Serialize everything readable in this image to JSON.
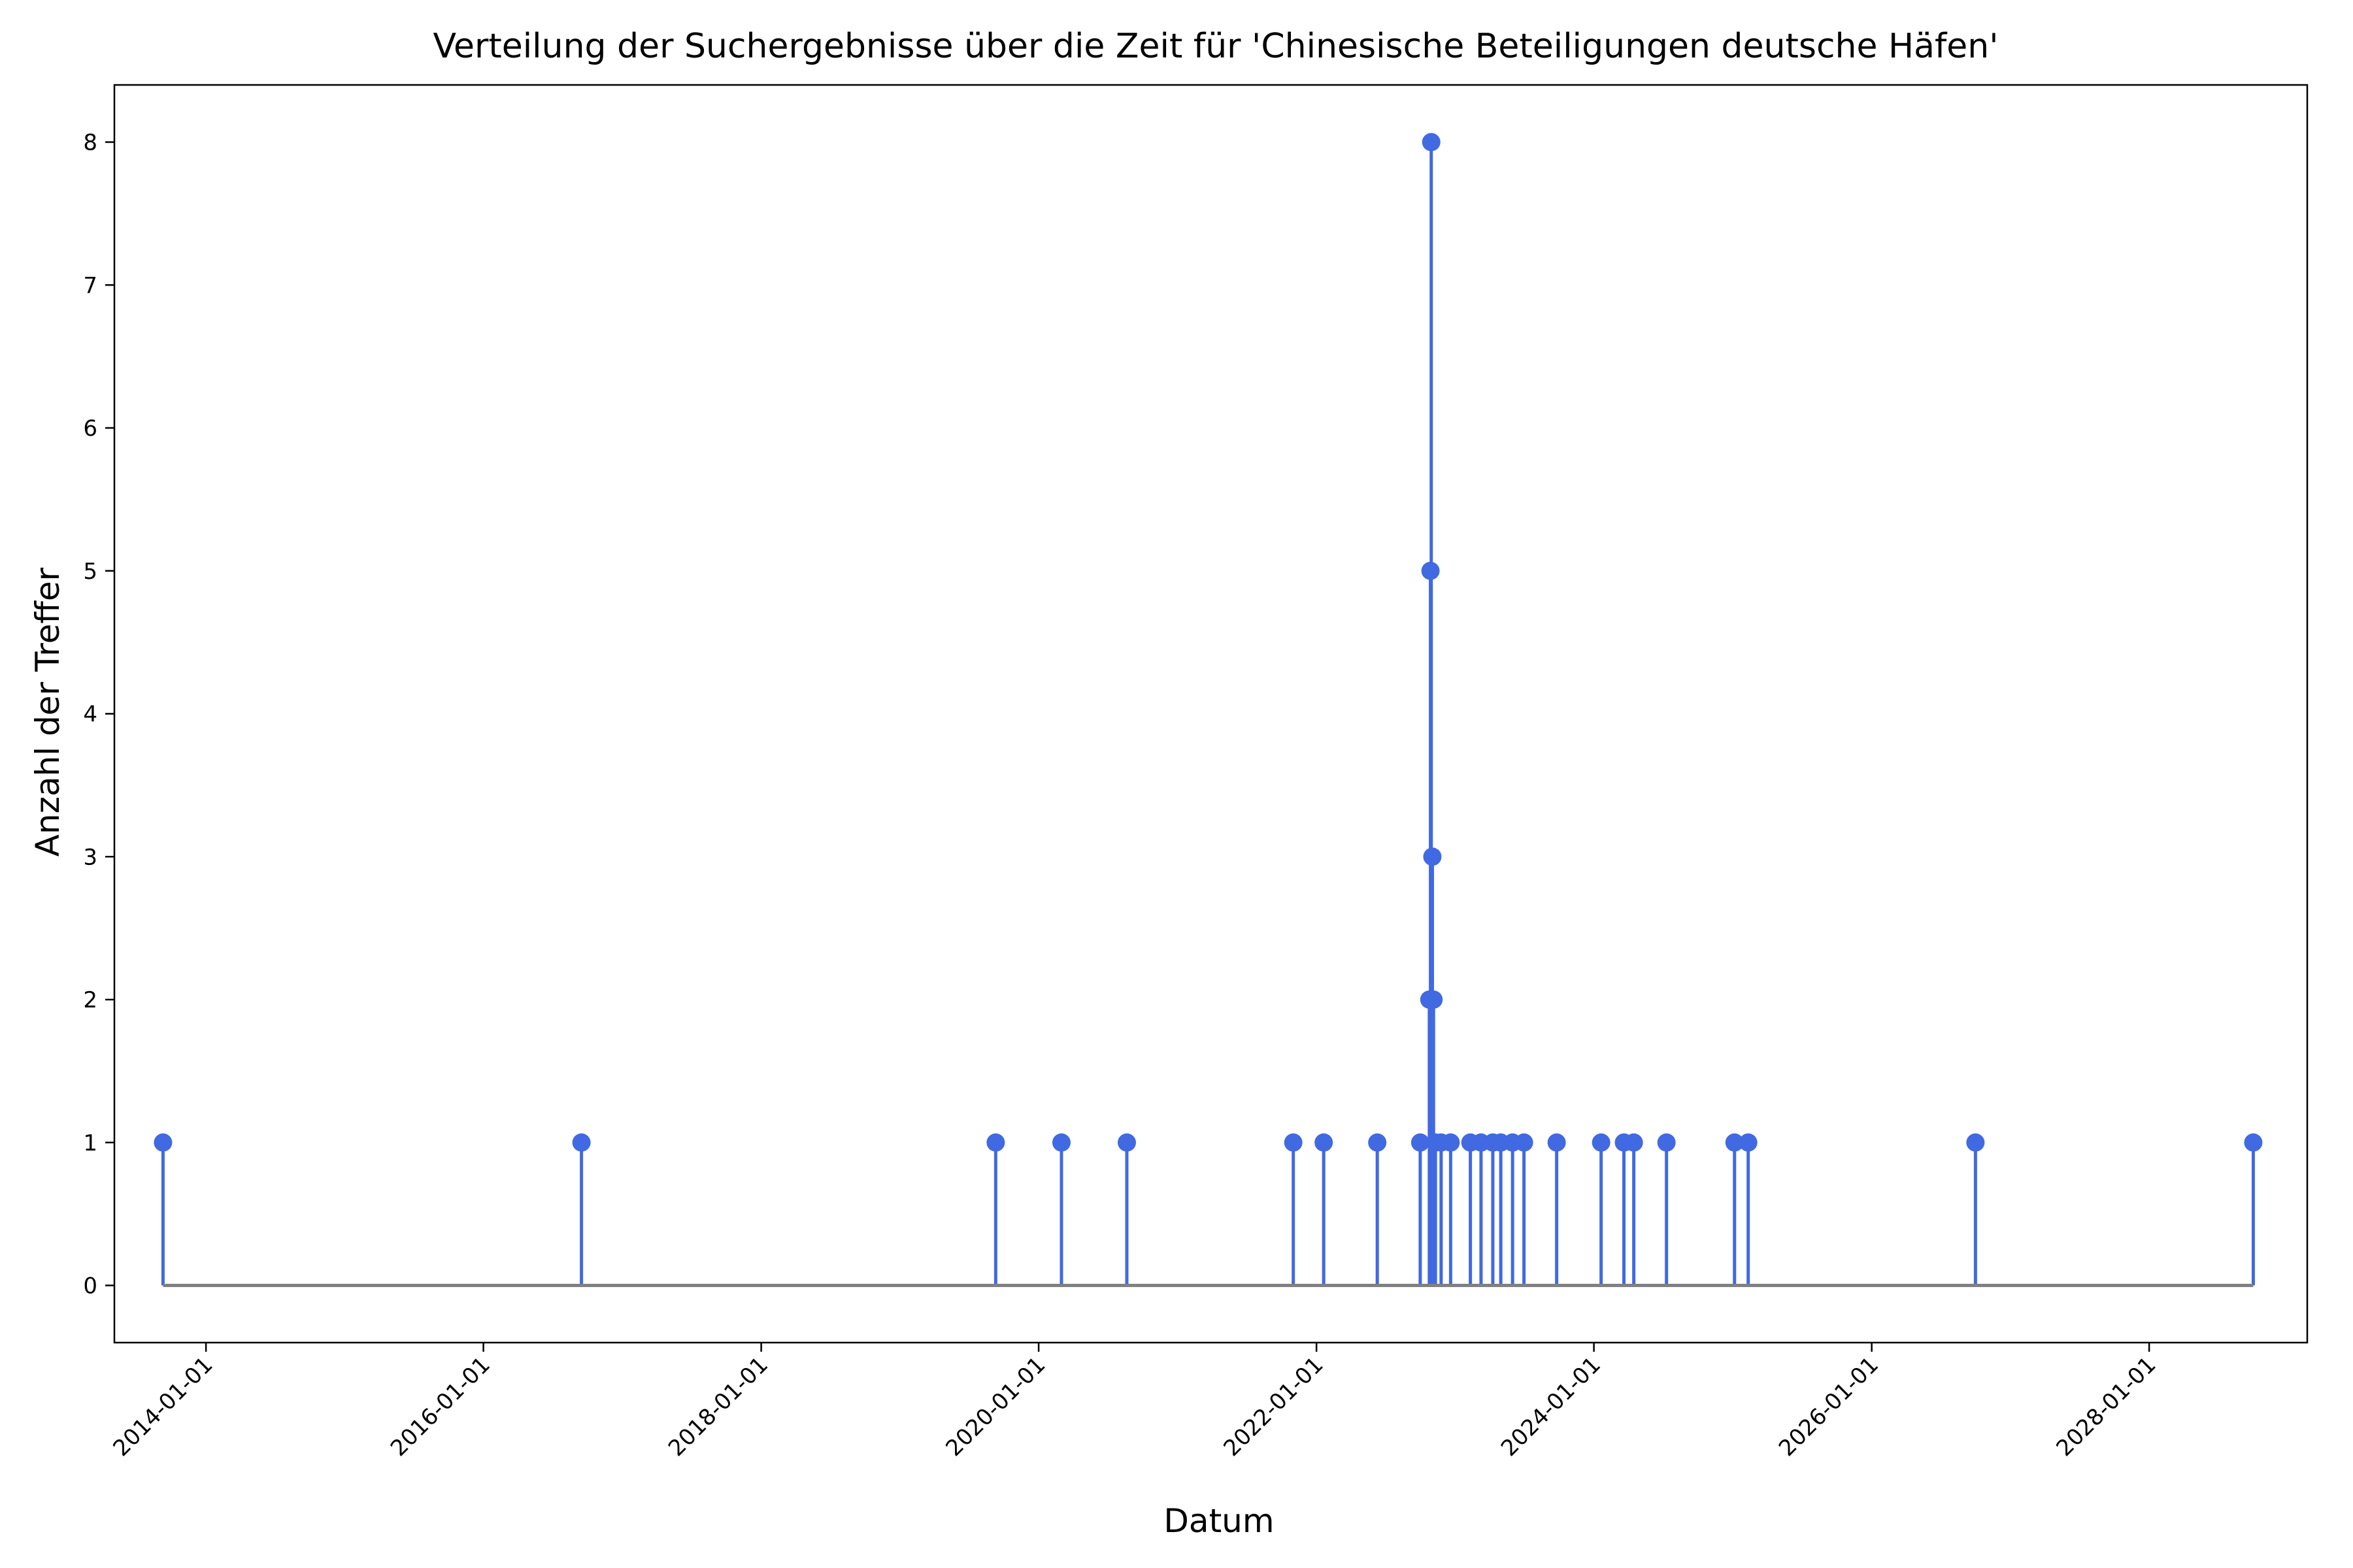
{
  "chart_data": {
    "type": "stem",
    "title": "Verteilung der Suchergebnisse über die Zeit für 'Chinesische Beteiligungen deutsche Häfen'",
    "xlabel": "Datum",
    "ylabel": "Anzahl der Treffer",
    "xlim": [
      "2013-05-05",
      "2029-02-20"
    ],
    "ylim": [
      -0.4,
      8.4
    ],
    "x_ticks": [
      "2014-01-01",
      "2016-01-01",
      "2018-01-01",
      "2020-01-01",
      "2022-01-01",
      "2024-01-01",
      "2026-01-01",
      "2028-01-01"
    ],
    "y_ticks": [
      0,
      1,
      2,
      3,
      4,
      5,
      6,
      7,
      8
    ],
    "grid": false,
    "colors": {
      "stem": "#4169e1",
      "baseline": "#808080"
    },
    "points": [
      {
        "x": "2013-09-10",
        "y": 1
      },
      {
        "x": "2016-09-15",
        "y": 1
      },
      {
        "x": "2019-09-10",
        "y": 1
      },
      {
        "x": "2020-03-01",
        "y": 1
      },
      {
        "x": "2020-08-20",
        "y": 1
      },
      {
        "x": "2021-11-01",
        "y": 1
      },
      {
        "x": "2022-01-20",
        "y": 1
      },
      {
        "x": "2022-06-10",
        "y": 1
      },
      {
        "x": "2022-10-01",
        "y": 1
      },
      {
        "x": "2022-10-25",
        "y": 2
      },
      {
        "x": "2022-10-28",
        "y": 5
      },
      {
        "x": "2022-10-30",
        "y": 8
      },
      {
        "x": "2022-11-02",
        "y": 3
      },
      {
        "x": "2022-11-05",
        "y": 2
      },
      {
        "x": "2022-11-10",
        "y": 1
      },
      {
        "x": "2022-11-25",
        "y": 1
      },
      {
        "x": "2022-12-20",
        "y": 1
      },
      {
        "x": "2023-02-10",
        "y": 1
      },
      {
        "x": "2023-03-10",
        "y": 1
      },
      {
        "x": "2023-04-10",
        "y": 1
      },
      {
        "x": "2023-05-01",
        "y": 1
      },
      {
        "x": "2023-06-01",
        "y": 1
      },
      {
        "x": "2023-07-01",
        "y": 1
      },
      {
        "x": "2023-09-25",
        "y": 1
      },
      {
        "x": "2024-01-20",
        "y": 1
      },
      {
        "x": "2024-03-20",
        "y": 1
      },
      {
        "x": "2024-04-15",
        "y": 1
      },
      {
        "x": "2024-07-10",
        "y": 1
      },
      {
        "x": "2025-01-05",
        "y": 1
      },
      {
        "x": "2025-02-10",
        "y": 1
      },
      {
        "x": "2026-10-01",
        "y": 1
      },
      {
        "x": "2028-10-01",
        "y": 1
      }
    ]
  }
}
